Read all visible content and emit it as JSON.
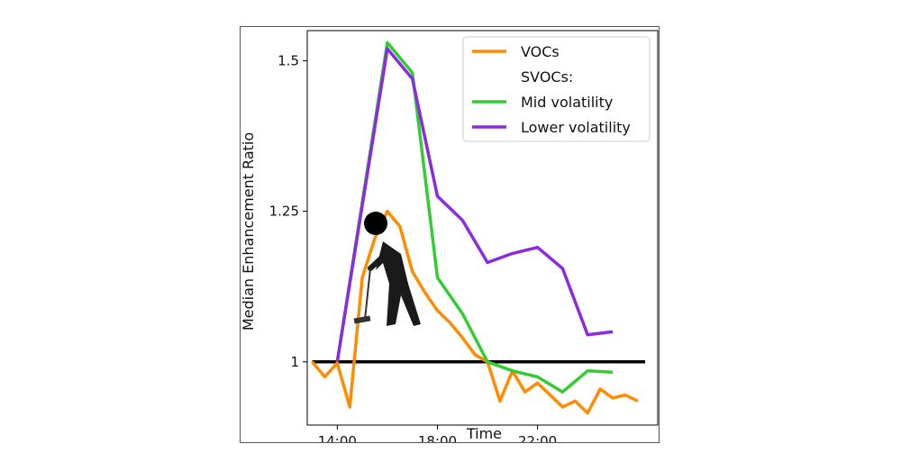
{
  "chart_data": {
    "type": "line",
    "title": "",
    "xlabel": "Time",
    "ylabel": "Median Enhancement Ratio",
    "x_unit": "hour of day",
    "xlim": [
      12.8,
      26.8
    ],
    "ylim": [
      0.895,
      1.55
    ],
    "x_ticks": [
      {
        "value": 14,
        "label": "14:00"
      },
      {
        "value": 18,
        "label": "18:00"
      },
      {
        "value": 22,
        "label": "22:00"
      }
    ],
    "y_ticks": [
      {
        "value": 1.0,
        "label": "1"
      },
      {
        "value": 1.25,
        "label": "1.25"
      },
      {
        "value": 1.5,
        "label": "1.5"
      }
    ],
    "reference_line": {
      "y": 1.0,
      "x_range": [
        13.0,
        26.3
      ],
      "color": "#000000"
    },
    "legend": {
      "placement": "top-right",
      "entries": [
        {
          "label": "VOCs",
          "color": "#ff8c00",
          "has_line": true
        },
        {
          "label": "SVOCs:",
          "color": "",
          "has_line": false
        },
        {
          "label": "Mid volatility",
          "color": "#33cc33",
          "has_line": true
        },
        {
          "label": "Lower volatility",
          "color": "#8a2be2",
          "has_line": true
        }
      ]
    },
    "series": [
      {
        "name": "VOCs",
        "color": "#ff8c00",
        "x": [
          13.0,
          13.5,
          14.0,
          14.5,
          15.0,
          15.5,
          16.0,
          16.5,
          17.0,
          17.5,
          18.0,
          18.5,
          19.0,
          19.5,
          20.0,
          20.5,
          21.0,
          21.5,
          22.0,
          22.5,
          23.0,
          23.5,
          24.0,
          24.5,
          25.0,
          25.5,
          26.0
        ],
        "y": [
          1.0,
          0.975,
          0.998,
          0.925,
          1.14,
          1.205,
          1.25,
          1.225,
          1.15,
          1.115,
          1.085,
          1.065,
          1.04,
          1.012,
          1.0,
          0.935,
          0.985,
          0.95,
          0.965,
          0.945,
          0.925,
          0.935,
          0.915,
          0.955,
          0.94,
          0.945,
          0.935
        ]
      },
      {
        "name": "Mid volatility",
        "color": "#33cc33",
        "x": [
          14.0,
          16.0,
          17.0,
          18.0,
          19.0,
          20.0,
          21.0,
          22.0,
          23.0,
          24.0,
          25.0
        ],
        "y": [
          1.0,
          1.53,
          1.48,
          1.14,
          1.08,
          1.0,
          0.985,
          0.975,
          0.95,
          0.985,
          0.983
        ]
      },
      {
        "name": "Lower volatility",
        "color": "#8a2be2",
        "x": [
          14.0,
          16.0,
          17.0,
          18.0,
          19.0,
          20.0,
          21.0,
          22.0,
          23.0,
          24.0,
          25.0
        ],
        "y": [
          1.0,
          1.52,
          1.47,
          1.275,
          1.235,
          1.165,
          1.18,
          1.19,
          1.155,
          1.045,
          1.05
        ]
      }
    ]
  }
}
